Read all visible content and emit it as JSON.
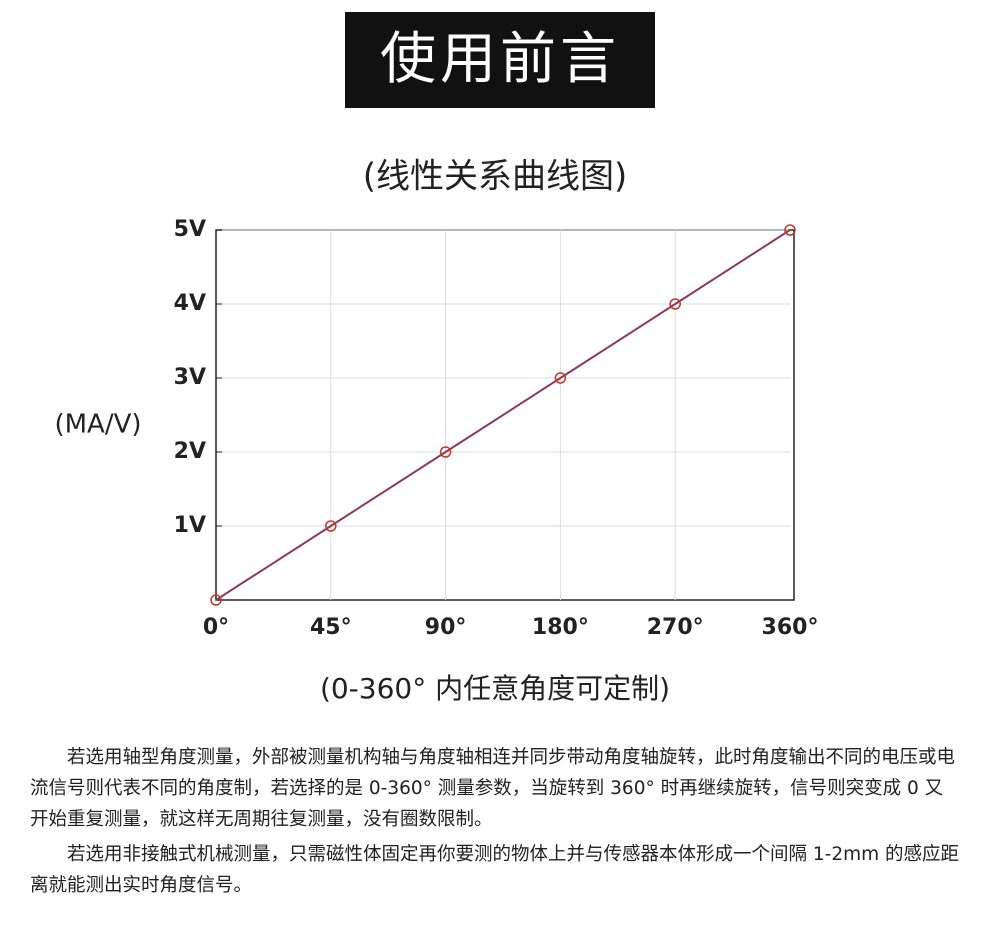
{
  "header": "使用前言",
  "chart_data": {
    "type": "line",
    "title": "(线性关系曲线图)",
    "y_label": "(MA/V)",
    "x_label": "(0-360° 内任意角度可定制)",
    "categories": [
      "0°",
      "45°",
      "90°",
      "180°",
      "270°",
      "360°"
    ],
    "values": [
      0,
      1,
      2,
      3,
      4,
      5
    ],
    "color": "#8b3a62",
    "marker_color": "#c0392b",
    "ylim": [
      0,
      5
    ],
    "yticks": [
      {
        "value": 1,
        "label": "1V"
      },
      {
        "value": 2,
        "label": "2V"
      },
      {
        "value": 3,
        "label": "3V"
      },
      {
        "value": 4,
        "label": "4V"
      },
      {
        "value": 5,
        "label": "5V"
      }
    ],
    "grid": true
  },
  "paragraphs": [
    "若选用轴型角度测量，外部被测量机构轴与角度轴相连并同步带动角度轴旋转，此时角度输出不同的电压或电流信号则代表不同的角度制，若选择的是 0-360° 测量参数，当旋转到 360° 时再继续旋转，信号则突变成 0 又开始重复测量，就这样无周期往复测量，没有圈数限制。",
    "若选用非接触式机械测量，只需磁性体固定再你要测的物体上并与传感器本体形成一个间隔 1-2mm 的感应距离就能测出实时角度信号。"
  ]
}
